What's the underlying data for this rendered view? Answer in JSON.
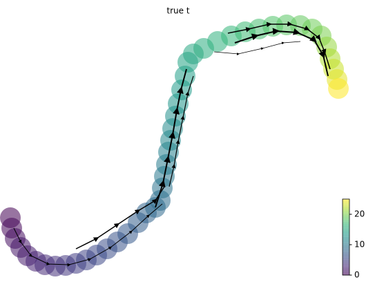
{
  "chart_data": {
    "type": "scatter",
    "title": "true t",
    "x": [
      5,
      7,
      12,
      20,
      30,
      42,
      55,
      70,
      85,
      100,
      115,
      130,
      145,
      160,
      175,
      190,
      202,
      215,
      222,
      225,
      228,
      231,
      234,
      237,
      240,
      244,
      248,
      253,
      258,
      262,
      270,
      285,
      305,
      325,
      345,
      365,
      385,
      405,
      425,
      442,
      455,
      463,
      468,
      473,
      478,
      480
    ],
    "y": [
      85,
      70,
      55,
      42,
      30,
      22,
      17,
      15,
      16,
      19,
      24,
      31,
      40,
      50,
      62,
      78,
      92,
      100,
      110,
      128,
      145,
      162,
      180,
      197,
      214,
      232,
      250,
      270,
      290,
      310,
      322,
      330,
      340,
      348,
      354,
      358,
      362,
      364,
      363,
      358,
      348,
      332,
      315,
      300,
      285,
      272
    ],
    "c": [
      0,
      0.5,
      1,
      1.5,
      2,
      2.5,
      3,
      3.5,
      4,
      4.5,
      5,
      5.5,
      6,
      6.5,
      7,
      7.5,
      8,
      8.5,
      9,
      9.5,
      10,
      10.5,
      11,
      11.5,
      12,
      12.5,
      13,
      13.5,
      14,
      14.5,
      15,
      15.5,
      16,
      16.5,
      17,
      17.5,
      18,
      18.5,
      19,
      19.5,
      20,
      21,
      22,
      23,
      24,
      25
    ],
    "xlim": [
      0,
      495
    ],
    "ylim": [
      0,
      370
    ],
    "colormap": "viridis",
    "clim": [
      0,
      25
    ],
    "cticks": [
      0,
      10,
      20
    ]
  }
}
